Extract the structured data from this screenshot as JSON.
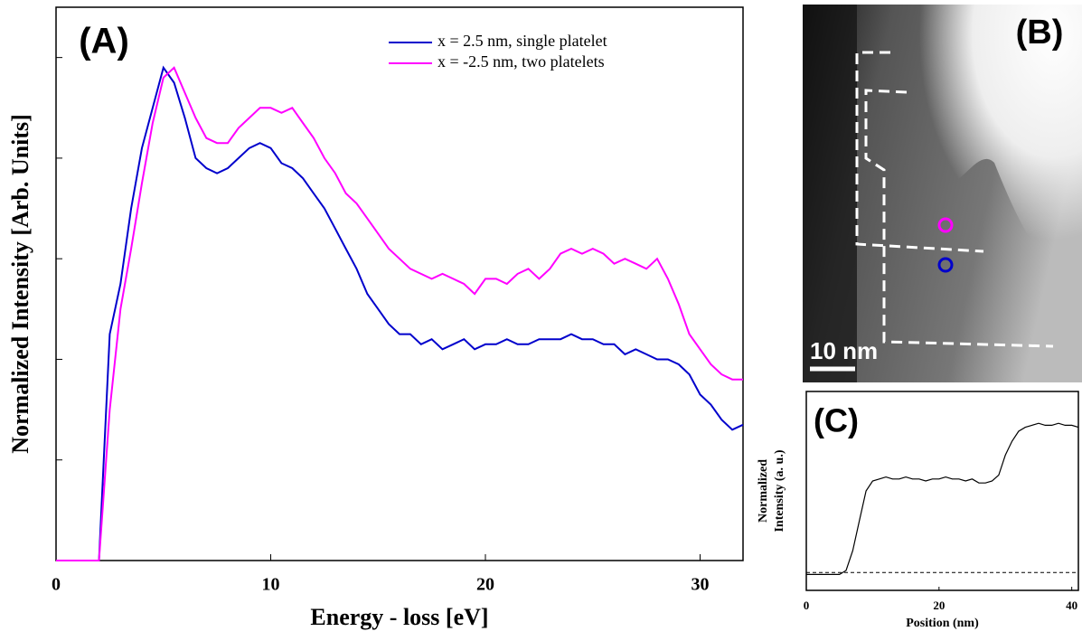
{
  "chart_data": [
    {
      "type": "line",
      "panel_label": "(A)",
      "xlabel": "Energy - loss [eV]",
      "ylabel": "Normalized Intensity [Arb. Units]",
      "x": [
        0,
        0.5,
        1,
        1.5,
        2,
        2.5,
        3,
        3.5,
        4,
        4.5,
        5,
        5.5,
        6,
        6.5,
        7,
        7.5,
        8,
        8.5,
        9,
        9.5,
        10,
        10.5,
        11,
        11.5,
        12,
        12.5,
        13,
        13.5,
        14,
        14.5,
        15,
        15.5,
        16,
        16.5,
        17,
        17.5,
        18,
        18.5,
        19,
        19.5,
        20,
        20.5,
        21,
        21.5,
        22,
        22.5,
        23,
        23.5,
        24,
        24.5,
        25,
        25.5,
        26,
        26.5,
        27,
        27.5,
        28,
        28.5,
        29,
        29.5,
        30,
        30.5,
        31,
        31.5,
        32
      ],
      "series": [
        {
          "name": "x = 2.5 nm, single platelet",
          "color": "#0000cc",
          "values": [
            0,
            0,
            0,
            0,
            0,
            0.45,
            0.55,
            0.7,
            0.82,
            0.9,
            0.98,
            0.95,
            0.88,
            0.8,
            0.78,
            0.77,
            0.78,
            0.8,
            0.82,
            0.83,
            0.82,
            0.79,
            0.78,
            0.76,
            0.73,
            0.7,
            0.66,
            0.62,
            0.58,
            0.53,
            0.5,
            0.47,
            0.45,
            0.45,
            0.43,
            0.44,
            0.42,
            0.43,
            0.44,
            0.42,
            0.43,
            0.43,
            0.44,
            0.43,
            0.43,
            0.44,
            0.44,
            0.44,
            0.45,
            0.44,
            0.44,
            0.43,
            0.43,
            0.41,
            0.42,
            0.41,
            0.4,
            0.4,
            0.39,
            0.37,
            0.33,
            0.31,
            0.28,
            0.26,
            0.27
          ]
        },
        {
          "name": "x = -2.5 nm, two platelets",
          "color": "#ff00ff",
          "values": [
            0,
            0,
            0,
            0,
            0,
            0.3,
            0.5,
            0.62,
            0.75,
            0.87,
            0.96,
            0.98,
            0.93,
            0.88,
            0.84,
            0.83,
            0.83,
            0.86,
            0.88,
            0.9,
            0.9,
            0.89,
            0.9,
            0.87,
            0.84,
            0.8,
            0.77,
            0.73,
            0.71,
            0.68,
            0.65,
            0.62,
            0.6,
            0.58,
            0.57,
            0.56,
            0.57,
            0.56,
            0.55,
            0.53,
            0.56,
            0.56,
            0.55,
            0.57,
            0.58,
            0.56,
            0.58,
            0.61,
            0.62,
            0.61,
            0.62,
            0.61,
            0.59,
            0.6,
            0.59,
            0.58,
            0.6,
            0.56,
            0.51,
            0.45,
            0.42,
            0.39,
            0.37,
            0.36,
            0.36
          ]
        }
      ],
      "xlim": [
        0,
        32
      ],
      "xticks": [
        0,
        10,
        20,
        30
      ],
      "ylim": [
        0,
        1.1
      ],
      "yticks": [
        0,
        0.2,
        0.4,
        0.6,
        0.8,
        1.0
      ]
    },
    {
      "type": "line",
      "panel_label": "(C)",
      "xlabel": "Position (nm)",
      "ylabel": [
        "Normalized",
        "Intensity (a. u.)"
      ],
      "x": [
        0,
        1,
        2,
        3,
        4,
        5,
        6,
        7,
        8,
        9,
        10,
        11,
        12,
        13,
        14,
        15,
        16,
        17,
        18,
        19,
        20,
        21,
        22,
        23,
        24,
        25,
        26,
        27,
        28,
        29,
        30,
        31,
        32,
        33,
        34,
        35,
        36,
        37,
        38,
        39,
        40,
        41
      ],
      "color": "#000000",
      "values": [
        0.08,
        0.08,
        0.08,
        0.08,
        0.08,
        0.08,
        0.1,
        0.2,
        0.35,
        0.5,
        0.55,
        0.56,
        0.57,
        0.56,
        0.56,
        0.57,
        0.56,
        0.56,
        0.55,
        0.56,
        0.56,
        0.57,
        0.56,
        0.56,
        0.55,
        0.56,
        0.54,
        0.54,
        0.55,
        0.58,
        0.68,
        0.75,
        0.8,
        0.82,
        0.83,
        0.84,
        0.83,
        0.83,
        0.84,
        0.83,
        0.83,
        0.82
      ],
      "baseline": 0.09,
      "xlim": [
        0,
        41
      ],
      "xticks": [
        0,
        20,
        40
      ],
      "ylim": [
        0,
        1
      ]
    }
  ],
  "image_panel": {
    "panel_label": "(B)",
    "scale_bar": "10 nm"
  }
}
